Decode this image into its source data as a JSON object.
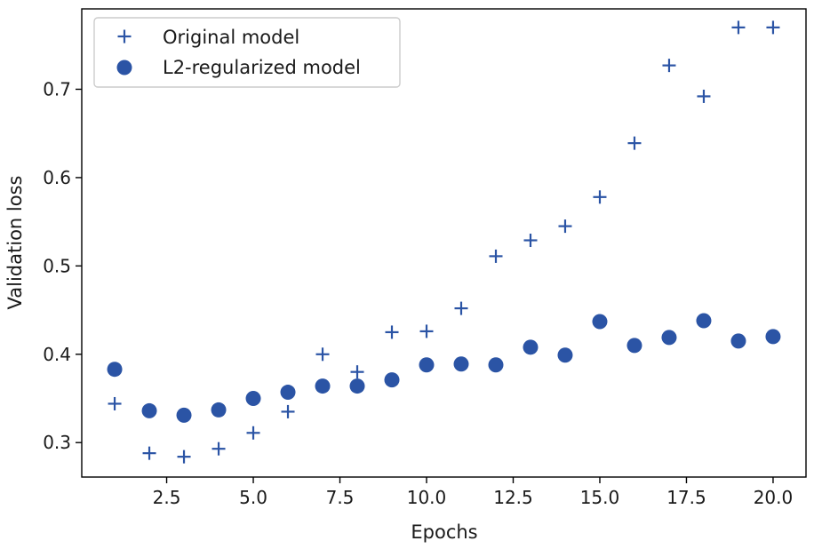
{
  "chart_data": {
    "type": "scatter",
    "title": "",
    "xlabel": "Epochs",
    "ylabel": "Validation loss",
    "xlim": [
      0.05,
      20.95
    ],
    "ylim": [
      0.261,
      0.791
    ],
    "xticks": [
      2.5,
      5.0,
      7.5,
      10.0,
      12.5,
      15.0,
      17.5,
      20.0
    ],
    "xtick_labels": [
      "2.5",
      "5.0",
      "7.5",
      "10.0",
      "12.5",
      "15.0",
      "17.5",
      "20.0"
    ],
    "yticks": [
      0.3,
      0.4,
      0.5,
      0.6,
      0.7
    ],
    "ytick_labels": [
      "0.3",
      "0.4",
      "0.5",
      "0.6",
      "0.7"
    ],
    "grid": false,
    "legend_position": "top-left",
    "color": "#2b54a5",
    "series": [
      {
        "name": "Original model",
        "marker": "plus",
        "x": [
          1,
          2,
          3,
          4,
          5,
          6,
          7,
          8,
          9,
          10,
          11,
          12,
          13,
          14,
          15,
          16,
          17,
          18,
          19,
          20
        ],
        "y": [
          0.344,
          0.288,
          0.284,
          0.293,
          0.311,
          0.335,
          0.4,
          0.38,
          0.425,
          0.426,
          0.452,
          0.511,
          0.529,
          0.545,
          0.578,
          0.639,
          0.727,
          0.692,
          0.77,
          0.77
        ]
      },
      {
        "name": "L2-regularized model",
        "marker": "circle",
        "x": [
          1,
          2,
          3,
          4,
          5,
          6,
          7,
          8,
          9,
          10,
          11,
          12,
          13,
          14,
          15,
          16,
          17,
          18,
          19,
          20
        ],
        "y": [
          0.383,
          0.336,
          0.331,
          0.337,
          0.35,
          0.357,
          0.364,
          0.364,
          0.371,
          0.388,
          0.389,
          0.388,
          0.408,
          0.399,
          0.437,
          0.41,
          0.419,
          0.438,
          0.415,
          0.42
        ]
      }
    ]
  }
}
